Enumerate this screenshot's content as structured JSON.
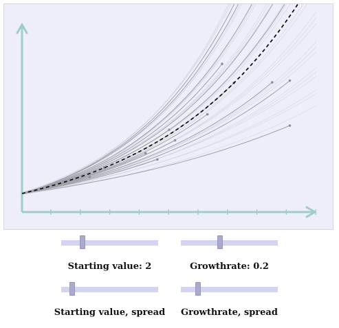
{
  "controls": {
    "start_value": {
      "label": "Starting value: 2",
      "value": 2,
      "fraction": 0.2
    },
    "growthrate": {
      "label": "Growthrate: 0.2",
      "value": 0.2,
      "fraction": 0.4
    },
    "start_spread": {
      "label": "Starting value, spread",
      "fraction": 0.09
    },
    "growth_spread": {
      "label": "Growthrate, spread",
      "fraction": 0.15
    }
  },
  "chart_data": {
    "type": "line",
    "x_ticks": 10,
    "y_start": 2,
    "growthrate": 0.2,
    "mean_curve_style": "dashed",
    "axis_color": "#9fcdc8",
    "sample_color": "#a0a0a8",
    "mean_color": "#111111"
  }
}
